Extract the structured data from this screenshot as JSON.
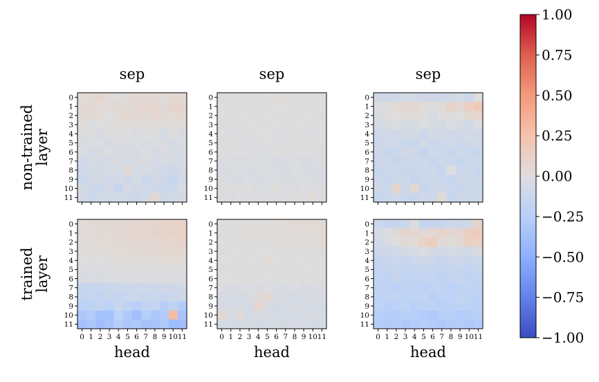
{
  "chart_data": {
    "type": "heatmap",
    "colormap": "coolwarm",
    "vmin": -1.0,
    "vmax": 1.0,
    "x_ticks": [
      "0",
      "1",
      "2",
      "3",
      "4",
      "5",
      "6",
      "7",
      "8",
      "9",
      "10",
      "11"
    ],
    "y_ticks": [
      "0",
      "1",
      "2",
      "3",
      "4",
      "5",
      "6",
      "7",
      "8",
      "9",
      "10",
      "11"
    ],
    "colorbar_ticks": [
      "1.00",
      "0.75",
      "0.50",
      "0.25",
      "0.00",
      "−0.25",
      "−0.50",
      "−0.75",
      "−1.00"
    ],
    "row_labels": [
      "non-trained\nlayer",
      "trained\nlayer"
    ],
    "panels": [
      {
        "title": "sep",
        "row": 0,
        "col": 0,
        "xlabel": "",
        "values": [
          [
            0.02,
            0.04,
            0.08,
            0.02,
            0.0,
            0.04,
            0.06,
            0.05,
            0.04,
            0.02,
            0.06,
            0.05
          ],
          [
            0.05,
            0.06,
            0.04,
            0.04,
            0.05,
            0.03,
            0.07,
            0.08,
            0.06,
            0.04,
            0.09,
            0.08
          ],
          [
            0.04,
            0.05,
            0.03,
            0.0,
            0.04,
            0.06,
            0.06,
            0.04,
            0.07,
            0.05,
            0.04,
            0.06
          ],
          [
            0.02,
            -0.02,
            0.0,
            0.02,
            0.03,
            0.01,
            0.03,
            0.04,
            0.02,
            0.01,
            0.03,
            0.02
          ],
          [
            -0.02,
            0.0,
            -0.04,
            0.0,
            -0.02,
            0.0,
            -0.03,
            0.0,
            -0.02,
            -0.06,
            0.0,
            -0.04
          ],
          [
            -0.04,
            -0.03,
            -0.02,
            -0.05,
            -0.01,
            -0.04,
            -0.02,
            -0.05,
            -0.02,
            -0.03,
            -0.06,
            -0.02
          ],
          [
            -0.02,
            -0.06,
            -0.04,
            -0.02,
            -0.05,
            -0.03,
            -0.04,
            -0.02,
            -0.05,
            -0.03,
            -0.05,
            -0.04
          ],
          [
            -0.08,
            -0.05,
            -0.06,
            -0.07,
            -0.04,
            -0.06,
            -0.05,
            -0.03,
            -0.07,
            -0.04,
            -0.06,
            -0.05
          ],
          [
            -0.1,
            -0.07,
            -0.08,
            -0.05,
            -0.06,
            0.06,
            -0.07,
            -0.05,
            -0.06,
            -0.08,
            -0.1,
            -0.07
          ],
          [
            -0.12,
            -0.08,
            -0.06,
            -0.09,
            -0.07,
            -0.1,
            -0.06,
            -0.12,
            -0.08,
            -0.1,
            -0.14,
            -0.08
          ],
          [
            -0.06,
            -0.1,
            -0.12,
            -0.08,
            -0.14,
            -0.07,
            -0.09,
            -0.08,
            -0.1,
            -0.12,
            -0.1,
            -0.04
          ],
          [
            -0.08,
            -0.12,
            -0.07,
            -0.1,
            -0.08,
            -0.09,
            -0.12,
            -0.08,
            0.05,
            -0.09,
            -0.08,
            -0.06
          ]
        ]
      },
      {
        "title": "sep",
        "row": 0,
        "col": 1,
        "xlabel": "",
        "values": [
          [
            0.01,
            0.0,
            0.02,
            0.0,
            0.01,
            0.0,
            0.01,
            0.02,
            0.0,
            0.01,
            0.0,
            0.01
          ],
          [
            0.0,
            0.01,
            0.0,
            0.01,
            0.0,
            0.01,
            0.0,
            0.0,
            0.01,
            0.0,
            0.01,
            0.0
          ],
          [
            0.0,
            -0.01,
            0.0,
            0.0,
            -0.01,
            0.0,
            0.01,
            0.0,
            -0.01,
            0.0,
            0.0,
            0.01
          ],
          [
            -0.01,
            0.0,
            -0.01,
            0.0,
            0.0,
            -0.01,
            0.0,
            -0.01,
            0.0,
            0.0,
            -0.01,
            0.0
          ],
          [
            0.0,
            -0.02,
            0.0,
            -0.01,
            0.0,
            0.0,
            -0.02,
            0.0,
            -0.01,
            0.0,
            -0.02,
            0.0
          ],
          [
            -0.01,
            0.0,
            -0.01,
            -0.02,
            -0.01,
            0.0,
            -0.01,
            -0.02,
            0.0,
            -0.01,
            0.0,
            -0.02
          ],
          [
            -0.02,
            -0.01,
            0.0,
            -0.01,
            -0.03,
            -0.02,
            0.0,
            -0.01,
            -0.02,
            0.0,
            -0.01,
            -0.02
          ],
          [
            -0.03,
            -0.02,
            -0.04,
            -0.02,
            -0.03,
            -0.02,
            -0.04,
            -0.03,
            -0.02,
            -0.04,
            -0.03,
            -0.02
          ],
          [
            -0.04,
            -0.03,
            -0.02,
            -0.04,
            -0.03,
            -0.02,
            -0.03,
            -0.04,
            -0.02,
            -0.03,
            -0.04,
            -0.03
          ],
          [
            -0.02,
            -0.03,
            -0.05,
            -0.02,
            -0.04,
            -0.03,
            -0.02,
            -0.04,
            -0.03,
            -0.02,
            -0.03,
            -0.04
          ],
          [
            -0.01,
            0.02,
            -0.02,
            0.0,
            -0.03,
            -0.02,
            0.01,
            -0.02,
            -0.03,
            0.0,
            -0.02,
            -0.01
          ],
          [
            -0.02,
            -0.03,
            0.0,
            -0.02,
            -0.01,
            -0.02,
            -0.03,
            -0.01,
            0.0,
            -0.02,
            0.03,
            -0.01
          ]
        ]
      },
      {
        "title": "sep",
        "row": 0,
        "col": 2,
        "xlabel": "",
        "values": [
          [
            -0.08,
            -0.1,
            -0.08,
            -0.06,
            -0.07,
            -0.09,
            -0.08,
            -0.1,
            -0.08,
            -0.07,
            -0.12,
            0.0
          ],
          [
            -0.02,
            0.0,
            0.04,
            0.06,
            0.05,
            0.02,
            0.0,
            0.04,
            0.1,
            0.06,
            0.14,
            0.2
          ],
          [
            -0.04,
            0.02,
            0.0,
            0.04,
            0.02,
            0.0,
            -0.04,
            0.0,
            0.02,
            0.0,
            0.06,
            0.08
          ],
          [
            -0.06,
            -0.04,
            -0.02,
            -0.06,
            -0.04,
            -0.02,
            -0.04,
            -0.06,
            -0.02,
            -0.04,
            -0.08,
            -0.02
          ],
          [
            -0.1,
            -0.08,
            -0.1,
            -0.06,
            -0.08,
            -0.12,
            -0.06,
            -0.08,
            -0.1,
            -0.08,
            -0.06,
            -0.1
          ],
          [
            -0.12,
            -0.1,
            -0.08,
            -0.12,
            -0.14,
            -0.08,
            -0.12,
            -0.1,
            -0.08,
            -0.12,
            -0.1,
            -0.08
          ],
          [
            -0.1,
            -0.14,
            -0.12,
            -0.08,
            -0.1,
            -0.16,
            -0.1,
            -0.12,
            -0.14,
            -0.1,
            -0.12,
            -0.14
          ],
          [
            -0.12,
            -0.1,
            -0.14,
            -0.12,
            -0.1,
            -0.12,
            -0.14,
            -0.1,
            -0.12,
            -0.14,
            -0.1,
            -0.12
          ],
          [
            -0.14,
            -0.12,
            -0.1,
            -0.14,
            -0.12,
            -0.1,
            -0.12,
            -0.14,
            0.0,
            -0.12,
            -0.1,
            -0.14
          ],
          [
            -0.12,
            -0.14,
            -0.12,
            -0.1,
            -0.14,
            -0.12,
            -0.1,
            -0.12,
            -0.14,
            -0.1,
            -0.12,
            -0.1
          ],
          [
            -0.1,
            -0.12,
            0.08,
            -0.12,
            0.06,
            -0.14,
            -0.12,
            -0.1,
            -0.12,
            -0.14,
            -0.1,
            -0.12
          ],
          [
            -0.14,
            -0.12,
            -0.1,
            -0.12,
            -0.14,
            -0.1,
            -0.12,
            0.04,
            -0.14,
            -0.1,
            -0.12,
            -0.1
          ]
        ]
      },
      {
        "title": "",
        "row": 1,
        "col": 0,
        "xlabel": "head",
        "values": [
          [
            0.02,
            0.03,
            0.04,
            0.05,
            0.04,
            0.06,
            0.06,
            0.07,
            0.08,
            0.09,
            0.1,
            0.1
          ],
          [
            0.03,
            0.04,
            0.05,
            0.04,
            0.06,
            0.07,
            0.08,
            0.08,
            0.09,
            0.1,
            0.11,
            0.11
          ],
          [
            0.02,
            0.03,
            0.03,
            0.04,
            0.05,
            0.05,
            0.06,
            0.07,
            0.07,
            0.08,
            0.08,
            0.09
          ],
          [
            0.02,
            0.02,
            0.03,
            0.03,
            0.04,
            0.04,
            0.05,
            0.05,
            0.06,
            0.06,
            0.07,
            0.07
          ],
          [
            0.0,
            0.01,
            0.0,
            0.02,
            0.01,
            0.02,
            0.02,
            0.03,
            0.02,
            0.03,
            0.04,
            0.03
          ],
          [
            -0.02,
            -0.02,
            -0.01,
            -0.02,
            -0.01,
            0.0,
            -0.01,
            0.0,
            -0.01,
            0.0,
            0.01,
            0.0
          ],
          [
            -0.04,
            -0.03,
            -0.04,
            -0.03,
            -0.02,
            -0.03,
            -0.02,
            -0.02,
            -0.03,
            -0.02,
            -0.02,
            -0.02
          ],
          [
            -0.16,
            -0.14,
            -0.15,
            -0.13,
            -0.12,
            -0.12,
            -0.1,
            -0.1,
            -0.12,
            -0.09,
            -0.11,
            -0.08
          ],
          [
            -0.18,
            -0.16,
            -0.18,
            -0.14,
            -0.16,
            -0.13,
            -0.12,
            -0.15,
            -0.13,
            -0.14,
            -0.12,
            -0.1
          ],
          [
            -0.22,
            -0.2,
            -0.18,
            -0.22,
            -0.14,
            -0.2,
            -0.24,
            -0.18,
            -0.16,
            -0.26,
            -0.2,
            -0.28
          ],
          [
            -0.32,
            -0.28,
            -0.36,
            -0.36,
            -0.22,
            -0.3,
            -0.38,
            -0.26,
            -0.32,
            -0.28,
            0.3,
            -0.34
          ],
          [
            -0.36,
            -0.32,
            -0.38,
            -0.34,
            -0.26,
            -0.32,
            -0.3,
            -0.36,
            -0.34,
            -0.3,
            -0.4,
            -0.38
          ]
        ]
      },
      {
        "title": "",
        "row": 1,
        "col": 1,
        "xlabel": "head",
        "values": [
          [
            0.0,
            0.01,
            0.0,
            0.01,
            0.02,
            0.01,
            0.02,
            0.02,
            0.03,
            0.03,
            0.04,
            0.04
          ],
          [
            0.01,
            0.0,
            0.01,
            0.02,
            0.01,
            0.02,
            0.03,
            0.02,
            0.03,
            0.04,
            0.03,
            0.04
          ],
          [
            0.0,
            0.01,
            0.0,
            0.01,
            0.0,
            0.01,
            0.02,
            0.01,
            0.02,
            0.01,
            0.02,
            0.03
          ],
          [
            -0.01,
            0.0,
            0.0,
            0.01,
            0.0,
            0.0,
            0.01,
            0.0,
            0.01,
            0.0,
            0.01,
            0.02
          ],
          [
            0.0,
            0.0,
            -0.01,
            0.0,
            0.0,
            0.03,
            0.0,
            -0.01,
            0.0,
            0.0,
            0.01,
            0.0
          ],
          [
            -0.01,
            0.0,
            0.0,
            -0.01,
            0.0,
            0.0,
            0.01,
            0.0,
            -0.01,
            0.0,
            0.0,
            0.0
          ],
          [
            0.0,
            0.0,
            0.02,
            0.0,
            -0.01,
            0.0,
            -0.02,
            0.0,
            0.0,
            -0.01,
            0.0,
            -0.01
          ],
          [
            -0.02,
            -0.04,
            -0.03,
            -0.02,
            -0.04,
            -0.02,
            -0.03,
            -0.05,
            -0.02,
            -0.04,
            -0.03,
            -0.02
          ],
          [
            -0.04,
            -0.05,
            -0.06,
            -0.04,
            0.04,
            0.06,
            -0.04,
            -0.05,
            -0.06,
            -0.04,
            -0.05,
            -0.04
          ],
          [
            -0.05,
            -0.06,
            -0.04,
            -0.06,
            0.08,
            -0.04,
            -0.06,
            -0.05,
            -0.04,
            -0.06,
            -0.05,
            -0.06
          ],
          [
            0.06,
            -0.04,
            0.04,
            -0.06,
            -0.05,
            -0.04,
            -0.06,
            -0.04,
            -0.05,
            -0.06,
            -0.04,
            -0.05
          ],
          [
            -0.06,
            -0.05,
            -0.06,
            -0.04,
            -0.06,
            -0.05,
            -0.04,
            -0.06,
            -0.05,
            -0.04,
            -0.06,
            -0.05
          ]
        ]
      },
      {
        "title": "",
        "row": 1,
        "col": 2,
        "xlabel": "head",
        "values": [
          [
            -0.12,
            -0.14,
            -0.14,
            -0.12,
            -0.02,
            -0.16,
            -0.14,
            -0.14,
            -0.1,
            -0.12,
            -0.08,
            0.1
          ],
          [
            -0.06,
            -0.02,
            0.04,
            0.08,
            0.06,
            0.04,
            0.06,
            0.1,
            0.06,
            0.08,
            0.14,
            0.18
          ],
          [
            -0.08,
            -0.04,
            0.0,
            0.04,
            0.02,
            0.12,
            0.16,
            0.04,
            0.02,
            0.06,
            0.14,
            0.12
          ],
          [
            -0.12,
            -0.1,
            -0.08,
            -0.06,
            -0.04,
            -0.02,
            -0.06,
            -0.08,
            -0.04,
            -0.06,
            -0.08,
            -0.04
          ],
          [
            -0.16,
            -0.14,
            -0.12,
            -0.14,
            -0.12,
            -0.1,
            -0.12,
            -0.14,
            -0.12,
            -0.1,
            -0.14,
            -0.12
          ],
          [
            -0.18,
            -0.16,
            -0.14,
            -0.18,
            -0.16,
            -0.14,
            -0.16,
            -0.18,
            -0.14,
            -0.16,
            -0.18,
            -0.14
          ],
          [
            -0.18,
            -0.2,
            -0.16,
            -0.18,
            -0.2,
            -0.18,
            -0.16,
            -0.2,
            -0.18,
            -0.16,
            -0.2,
            -0.18
          ],
          [
            -0.2,
            -0.18,
            -0.22,
            -0.2,
            -0.18,
            -0.22,
            -0.2,
            -0.18,
            -0.22,
            -0.2,
            -0.18,
            -0.2
          ],
          [
            -0.22,
            -0.2,
            -0.18,
            -0.22,
            -0.2,
            -0.18,
            -0.24,
            -0.2,
            -0.22,
            -0.18,
            -0.2,
            -0.22
          ],
          [
            -0.2,
            -0.24,
            -0.22,
            -0.2,
            -0.24,
            -0.22,
            -0.2,
            -0.24,
            -0.22,
            -0.2,
            -0.22,
            -0.24
          ],
          [
            -0.24,
            -0.26,
            -0.28,
            -0.24,
            -0.26,
            -0.28,
            -0.3,
            -0.26,
            -0.24,
            -0.28,
            -0.26,
            -0.24
          ],
          [
            -0.26,
            -0.28,
            -0.26,
            -0.3,
            -0.28,
            -0.26,
            -0.28,
            -0.3,
            -0.28,
            -0.26,
            -0.3,
            -0.28
          ]
        ]
      }
    ]
  }
}
